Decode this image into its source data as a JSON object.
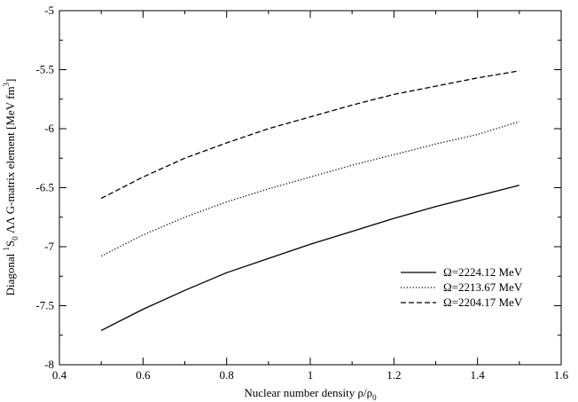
{
  "chart_data": {
    "type": "line",
    "title": "",
    "xlabel": "Nuclear number density ρ/ρ",
    "xlabel_sub": "0",
    "ylabel_parts": [
      "Diagonal ",
      "1",
      "S",
      "0",
      "  ΛΛ G-matrix element [MeV fm",
      "3",
      "]"
    ],
    "xlim": [
      0.4,
      1.6
    ],
    "ylim": [
      -8,
      -5
    ],
    "xticks": [
      0.4,
      0.6,
      0.8,
      1,
      1.2,
      1.4,
      1.6
    ],
    "yticks": [
      -8,
      -7.5,
      -7,
      -6.5,
      -6,
      -5.5,
      -5
    ],
    "xtick_labels": [
      "0.4",
      "0.6",
      "0.8",
      "1",
      "1.2",
      "1.4",
      "1.6"
    ],
    "ytick_labels": [
      "-8",
      "-7.5",
      "-7",
      "-6.5",
      "-6",
      "-5.5",
      "-5"
    ],
    "grid": false,
    "legend_position": "lower-right",
    "x": [
      0.5,
      0.6,
      0.7,
      0.8,
      0.9,
      1.0,
      1.1,
      1.2,
      1.3,
      1.4,
      1.5
    ],
    "series": [
      {
        "name": "Ω=2224.12 MeV",
        "style": "solid",
        "values": [
          -7.71,
          -7.53,
          -7.37,
          -7.22,
          -7.1,
          -6.98,
          -6.87,
          -6.76,
          -6.66,
          -6.57,
          -6.48
        ]
      },
      {
        "name": "Ω=2213.67 MeV",
        "style": "dotted",
        "values": [
          -7.08,
          -6.9,
          -6.75,
          -6.62,
          -6.51,
          -6.41,
          -6.31,
          -6.22,
          -6.13,
          -6.05,
          -5.94
        ]
      },
      {
        "name": "Ω=2204.17 MeV",
        "style": "dashed",
        "values": [
          -6.59,
          -6.41,
          -6.25,
          -6.12,
          -6.0,
          -5.9,
          -5.8,
          -5.71,
          -5.64,
          -5.57,
          -5.51
        ]
      }
    ]
  }
}
